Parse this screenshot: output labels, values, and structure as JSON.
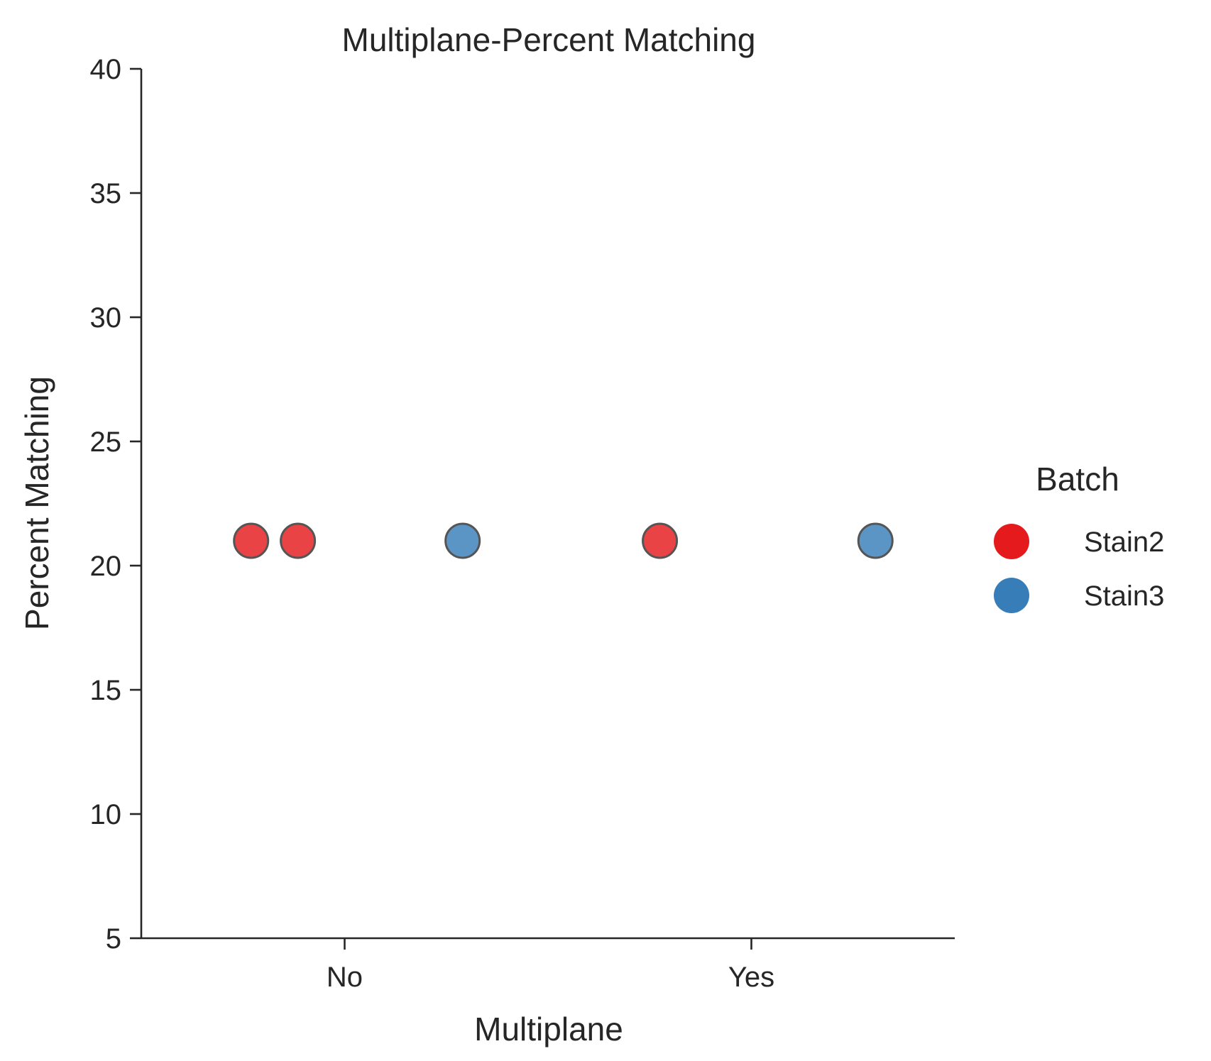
{
  "chart_data": {
    "type": "scatter",
    "title": "Multiplane-Percent Matching",
    "xlabel": "Multiplane",
    "ylabel": "Percent Matching",
    "categories": [
      "No",
      "Yes"
    ],
    "ylim": [
      5,
      40
    ],
    "yticks": [
      5,
      10,
      15,
      20,
      25,
      30,
      35,
      40
    ],
    "grid": false,
    "legend": {
      "title": "Batch",
      "placement": "right"
    },
    "series": [
      {
        "name": "Stain2",
        "color": "#e41a1c",
        "points": [
          {
            "category": "No",
            "jitter": -0.46,
            "y": 21
          },
          {
            "category": "No",
            "jitter": -0.23,
            "y": 21
          },
          {
            "category": "Yes",
            "jitter": -0.45,
            "y": 21
          }
        ]
      },
      {
        "name": "Stain3",
        "color": "#377eb8",
        "points": [
          {
            "category": "No",
            "jitter": 0.58,
            "y": 21
          },
          {
            "category": "Yes",
            "jitter": 0.61,
            "y": 21
          }
        ]
      }
    ]
  }
}
